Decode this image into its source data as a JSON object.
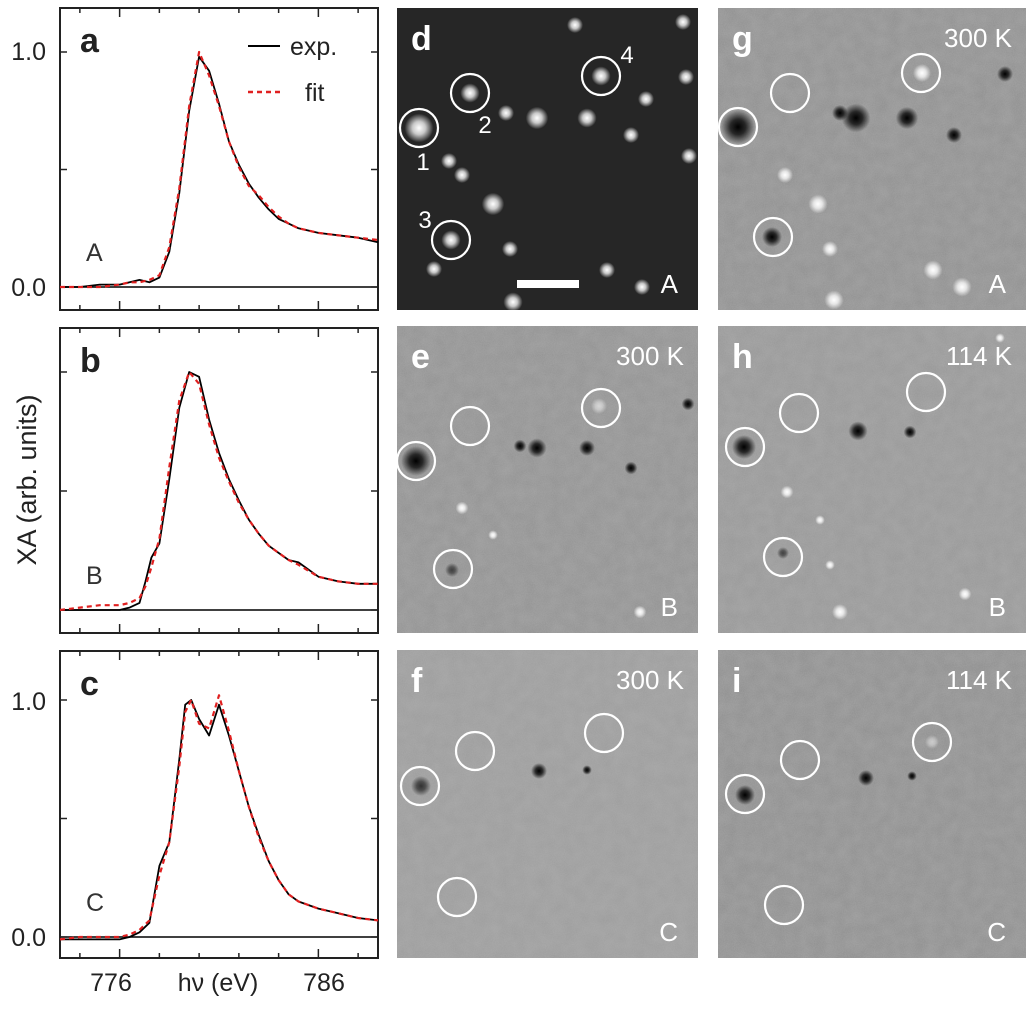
{
  "figure": {
    "ylabel": "XA (arb. units)",
    "xlabel": "hν (eV)",
    "x_ticks": [
      "776",
      "786"
    ],
    "y_ticks": [
      "0.0",
      "1.0"
    ]
  },
  "chart_data": [
    {
      "panel": "a",
      "type": "line",
      "label": "A",
      "xlim": [
        773,
        789
      ],
      "ylim": [
        -0.02,
        1.2
      ],
      "legend": {
        "entries": [
          "exp.",
          "fit"
        ],
        "placement": "top-right"
      },
      "series": [
        {
          "name": "exp.",
          "style": "solid",
          "color": "#000000",
          "x": [
            773,
            774,
            775,
            776,
            776.5,
            777,
            777.5,
            778,
            778.5,
            779,
            779.5,
            780,
            780.5,
            781,
            781.5,
            782,
            782.5,
            783,
            783.5,
            784,
            784.5,
            785,
            786,
            787,
            788,
            789
          ],
          "y": [
            0.0,
            0.0,
            0.01,
            0.01,
            0.02,
            0.03,
            0.02,
            0.04,
            0.15,
            0.4,
            0.75,
            0.98,
            0.92,
            0.78,
            0.62,
            0.52,
            0.44,
            0.38,
            0.33,
            0.29,
            0.27,
            0.25,
            0.23,
            0.22,
            0.21,
            0.19
          ]
        },
        {
          "name": "fit",
          "style": "dashed",
          "color": "#e02020",
          "x": [
            773,
            774,
            775,
            776,
            776.5,
            777,
            777.5,
            778,
            778.5,
            779,
            779.5,
            780,
            780.5,
            781,
            781.5,
            782,
            782.5,
            783,
            783.5,
            784,
            784.5,
            785,
            786,
            787,
            788,
            789
          ],
          "y": [
            0.0,
            0.0,
            0.0,
            0.01,
            0.02,
            0.02,
            0.03,
            0.05,
            0.17,
            0.42,
            0.77,
            1.0,
            0.9,
            0.77,
            0.62,
            0.51,
            0.43,
            0.39,
            0.34,
            0.3,
            0.27,
            0.25,
            0.23,
            0.22,
            0.21,
            0.2
          ]
        }
      ]
    },
    {
      "panel": "b",
      "type": "line",
      "label": "B",
      "xlim": [
        773,
        789
      ],
      "ylim": [
        -0.02,
        1.2
      ],
      "series": [
        {
          "name": "exp.",
          "style": "solid",
          "color": "#000000",
          "x": [
            773,
            774,
            775,
            776,
            776.5,
            777,
            777.3,
            777.6,
            778,
            778.5,
            779,
            779.5,
            780,
            780.5,
            781,
            781.5,
            782,
            782.5,
            783,
            783.5,
            784,
            784.5,
            785,
            786,
            787,
            788,
            789
          ],
          "y": [
            0.0,
            0.0,
            0.0,
            0.0,
            0.01,
            0.03,
            0.12,
            0.22,
            0.28,
            0.55,
            0.85,
            1.0,
            0.98,
            0.8,
            0.66,
            0.55,
            0.46,
            0.38,
            0.32,
            0.27,
            0.24,
            0.21,
            0.2,
            0.14,
            0.12,
            0.11,
            0.11
          ]
        },
        {
          "name": "fit",
          "style": "dashed",
          "color": "#e02020",
          "x": [
            773,
            774,
            775,
            776,
            776.5,
            777,
            777.3,
            777.6,
            778,
            778.5,
            779,
            779.5,
            780,
            780.5,
            781,
            781.5,
            782,
            782.5,
            783,
            783.5,
            784,
            784.5,
            785,
            786,
            787,
            788,
            789
          ],
          "y": [
            0.0,
            0.01,
            0.02,
            0.02,
            0.03,
            0.05,
            0.1,
            0.18,
            0.3,
            0.6,
            0.88,
            1.0,
            0.95,
            0.78,
            0.64,
            0.54,
            0.45,
            0.38,
            0.32,
            0.27,
            0.24,
            0.21,
            0.19,
            0.14,
            0.12,
            0.11,
            0.11
          ]
        }
      ]
    },
    {
      "panel": "c",
      "type": "line",
      "label": "C",
      "xlim": [
        773,
        789
      ],
      "ylim": [
        -0.02,
        1.2
      ],
      "series": [
        {
          "name": "exp.",
          "style": "solid",
          "color": "#000000",
          "x": [
            773,
            774,
            775,
            776,
            776.5,
            777,
            777.5,
            778,
            778.5,
            779,
            779.3,
            779.6,
            780,
            780.5,
            781,
            781.5,
            782,
            782.5,
            783,
            783.5,
            784,
            784.5,
            785,
            786,
            787,
            788,
            789
          ],
          "y": [
            -0.01,
            -0.01,
            -0.01,
            -0.01,
            0.0,
            0.02,
            0.06,
            0.3,
            0.4,
            0.75,
            0.98,
            1.0,
            0.92,
            0.85,
            0.98,
            0.85,
            0.7,
            0.55,
            0.43,
            0.32,
            0.24,
            0.18,
            0.15,
            0.12,
            0.1,
            0.08,
            0.07
          ]
        },
        {
          "name": "fit",
          "style": "dashed",
          "color": "#e02020",
          "x": [
            773,
            774,
            775,
            776,
            776.5,
            777,
            777.5,
            778,
            778.5,
            779,
            779.3,
            779.6,
            780,
            780.5,
            781,
            781.5,
            782,
            782.5,
            783,
            783.5,
            784,
            784.5,
            785,
            786,
            787,
            788,
            789
          ],
          "y": [
            -0.01,
            0.0,
            0.0,
            0.0,
            0.01,
            0.03,
            0.07,
            0.26,
            0.4,
            0.72,
            0.95,
            1.0,
            0.9,
            0.88,
            1.02,
            0.87,
            0.7,
            0.55,
            0.42,
            0.32,
            0.24,
            0.18,
            0.15,
            0.12,
            0.1,
            0.08,
            0.07
          ]
        }
      ]
    }
  ],
  "images": [
    {
      "panel": "d",
      "temp": "",
      "region": "A",
      "bg": "#262626",
      "scalebar": true,
      "numbers": [
        "1",
        "2",
        "3",
        "4"
      ],
      "dots": [
        [
          575,
          25,
          "w",
          5
        ],
        [
          683,
          22,
          "w",
          5
        ],
        [
          506,
          113,
          "w",
          5
        ],
        [
          537,
          118,
          "w",
          7
        ],
        [
          587,
          118,
          "w",
          6
        ],
        [
          631,
          135,
          "w",
          5
        ],
        [
          646,
          99,
          "w",
          5
        ],
        [
          689,
          156,
          "w",
          5
        ],
        [
          686,
          77,
          "w",
          5
        ],
        [
          449,
          161,
          "w",
          5
        ],
        [
          462,
          175,
          "w",
          5
        ],
        [
          493,
          204,
          "w",
          7
        ],
        [
          510,
          249,
          "w",
          5
        ],
        [
          434,
          269,
          "w",
          5
        ],
        [
          607,
          270,
          "w",
          5
        ],
        [
          642,
          287,
          "w",
          5
        ],
        [
          513,
          302,
          "w",
          6
        ]
      ]
    },
    {
      "panel": "e",
      "temp": "300 K",
      "region": "B",
      "bg": "#8f8f8f",
      "scalebar": false,
      "dots": [
        [
          537,
          448,
          "b",
          6
        ],
        [
          520,
          446,
          "b",
          4
        ],
        [
          587,
          448,
          "b",
          5
        ],
        [
          631,
          468,
          "b",
          4
        ],
        [
          688,
          404,
          "b",
          4
        ],
        [
          462,
          508,
          "w",
          4
        ],
        [
          493,
          535,
          "w",
          3
        ],
        [
          640,
          612,
          "w",
          4
        ]
      ]
    },
    {
      "panel": "f",
      "temp": "300 K",
      "region": "C",
      "bg": "#9a9a9a",
      "scalebar": false,
      "dots": [
        [
          539,
          771,
          "b",
          5
        ],
        [
          587,
          770,
          "b",
          3
        ]
      ]
    },
    {
      "panel": "g",
      "temp": "300 K",
      "region": "A",
      "bg": "#8d8d8d",
      "scalebar": false,
      "dots": [
        [
          856,
          118,
          "b",
          9
        ],
        [
          840,
          113,
          "b",
          5
        ],
        [
          907,
          118,
          "b",
          7
        ],
        [
          954,
          135,
          "b",
          5
        ],
        [
          1005,
          74,
          "b",
          5
        ],
        [
          785,
          175,
          "w",
          5
        ],
        [
          818,
          204,
          "w",
          6
        ],
        [
          830,
          249,
          "w",
          5
        ],
        [
          933,
          270,
          "w",
          6
        ],
        [
          962,
          287,
          "w",
          6
        ],
        [
          834,
          300,
          "w",
          6
        ]
      ]
    },
    {
      "panel": "h",
      "temp": "114 K",
      "region": "B",
      "bg": "#959595",
      "scalebar": false,
      "dots": [
        [
          858,
          431,
          "b",
          6
        ],
        [
          910,
          432,
          "b",
          4
        ],
        [
          1000,
          338,
          "w",
          3
        ],
        [
          787,
          492,
          "w",
          4
        ],
        [
          820,
          520,
          "w",
          3
        ],
        [
          830,
          565,
          "w",
          3
        ],
        [
          840,
          612,
          "w",
          5
        ],
        [
          965,
          594,
          "w",
          4
        ]
      ]
    },
    {
      "panel": "i",
      "temp": "114 K",
      "region": "C",
      "bg": "#8c8c8c",
      "scalebar": false,
      "dots": [
        [
          866,
          778,
          "b",
          5
        ],
        [
          912,
          776,
          "b",
          3
        ]
      ]
    }
  ]
}
